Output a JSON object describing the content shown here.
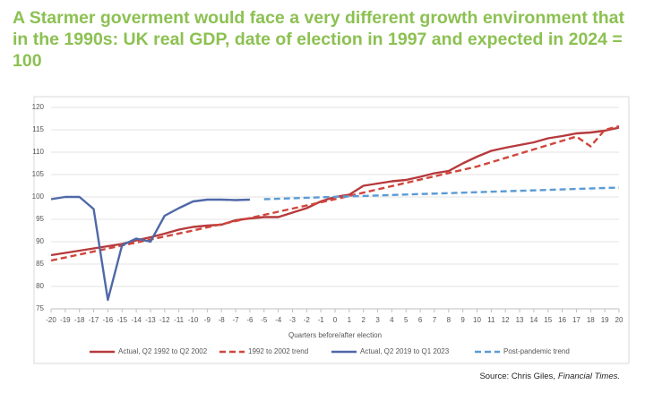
{
  "chart_data": {
    "type": "line",
    "title": "A Starmer goverment would face a very different growth environment that in the 1990s: UK real GDP, date of election in 1997 and expected in 2024 = 100",
    "x_label": "Quarters before/after election",
    "source": "Source: Chris Giles,",
    "source_publication": "Financial Times.",
    "xlim": [
      -20,
      20
    ],
    "xticks": [
      -20,
      -19,
      -18,
      -17,
      -16,
      -15,
      -14,
      -13,
      -12,
      -11,
      -10,
      -9,
      -8,
      -7,
      -6,
      -5,
      -4,
      -3,
      -2,
      -1,
      0,
      1,
      2,
      3,
      4,
      5,
      6,
      7,
      8,
      9,
      10,
      11,
      12,
      13,
      14,
      15,
      16,
      17,
      18,
      19,
      20
    ],
    "ylim": [
      75,
      120
    ],
    "yticks": [
      75,
      80,
      85,
      90,
      95,
      100,
      105,
      110,
      115,
      120
    ],
    "grid": true,
    "legend": "bottom",
    "series": [
      {
        "name": "Actual, Q2 1992 to Q2 2002",
        "color": "#b63a3c",
        "dash": false,
        "x": [
          -20,
          -19,
          -18,
          -17,
          -16,
          -15,
          -14,
          -13,
          -12,
          -11,
          -10,
          -9,
          -8,
          -7,
          -6,
          -5,
          -4,
          -3,
          -2,
          -1,
          0,
          1,
          2,
          3,
          4,
          5,
          6,
          7,
          8,
          9,
          10,
          11,
          12,
          13,
          14,
          15,
          16,
          17,
          18,
          19,
          20
        ],
        "values": [
          87,
          87.5,
          88,
          88.5,
          89,
          89.5,
          90.3,
          91,
          91.8,
          92.7,
          93.3,
          93.6,
          93.8,
          94.8,
          95.2,
          95.5,
          95.5,
          96.5,
          97.5,
          99,
          100,
          100.5,
          102.5,
          103,
          103.5,
          103.8,
          104.5,
          105.3,
          105.8,
          107.5,
          109,
          110.3,
          111,
          111.6,
          112.2,
          113.1,
          113.6,
          114.2,
          114.4,
          114.8,
          115.5
        ]
      },
      {
        "name": "1992 to 2002 trend",
        "color": "#d0463c",
        "dash": true,
        "x": [
          -20,
          -10,
          0,
          10,
          17,
          18,
          19,
          20
        ],
        "values": [
          85.8,
          92.5,
          99.5,
          106.8,
          113.5,
          111.3,
          115,
          115.8
        ]
      },
      {
        "name": "Actual, Q2 2019 to Q1 2023",
        "color": "#4f68a8",
        "dash": false,
        "x": [
          -20,
          -19,
          -18,
          -17,
          -16,
          -15,
          -14,
          -13,
          -12,
          -11,
          -10,
          -9,
          -8,
          -7,
          -6
        ],
        "values": [
          99.5,
          100,
          100,
          97.3,
          77,
          89.2,
          90.7,
          90,
          95.8,
          97.5,
          99,
          99.4,
          99.4,
          99.3,
          99.4
        ]
      },
      {
        "name": "Post-pandemic trend",
        "color": "#5b9bd5",
        "dash": true,
        "x": [
          -5,
          20
        ],
        "values": [
          99.5,
          102.1
        ]
      }
    ]
  }
}
